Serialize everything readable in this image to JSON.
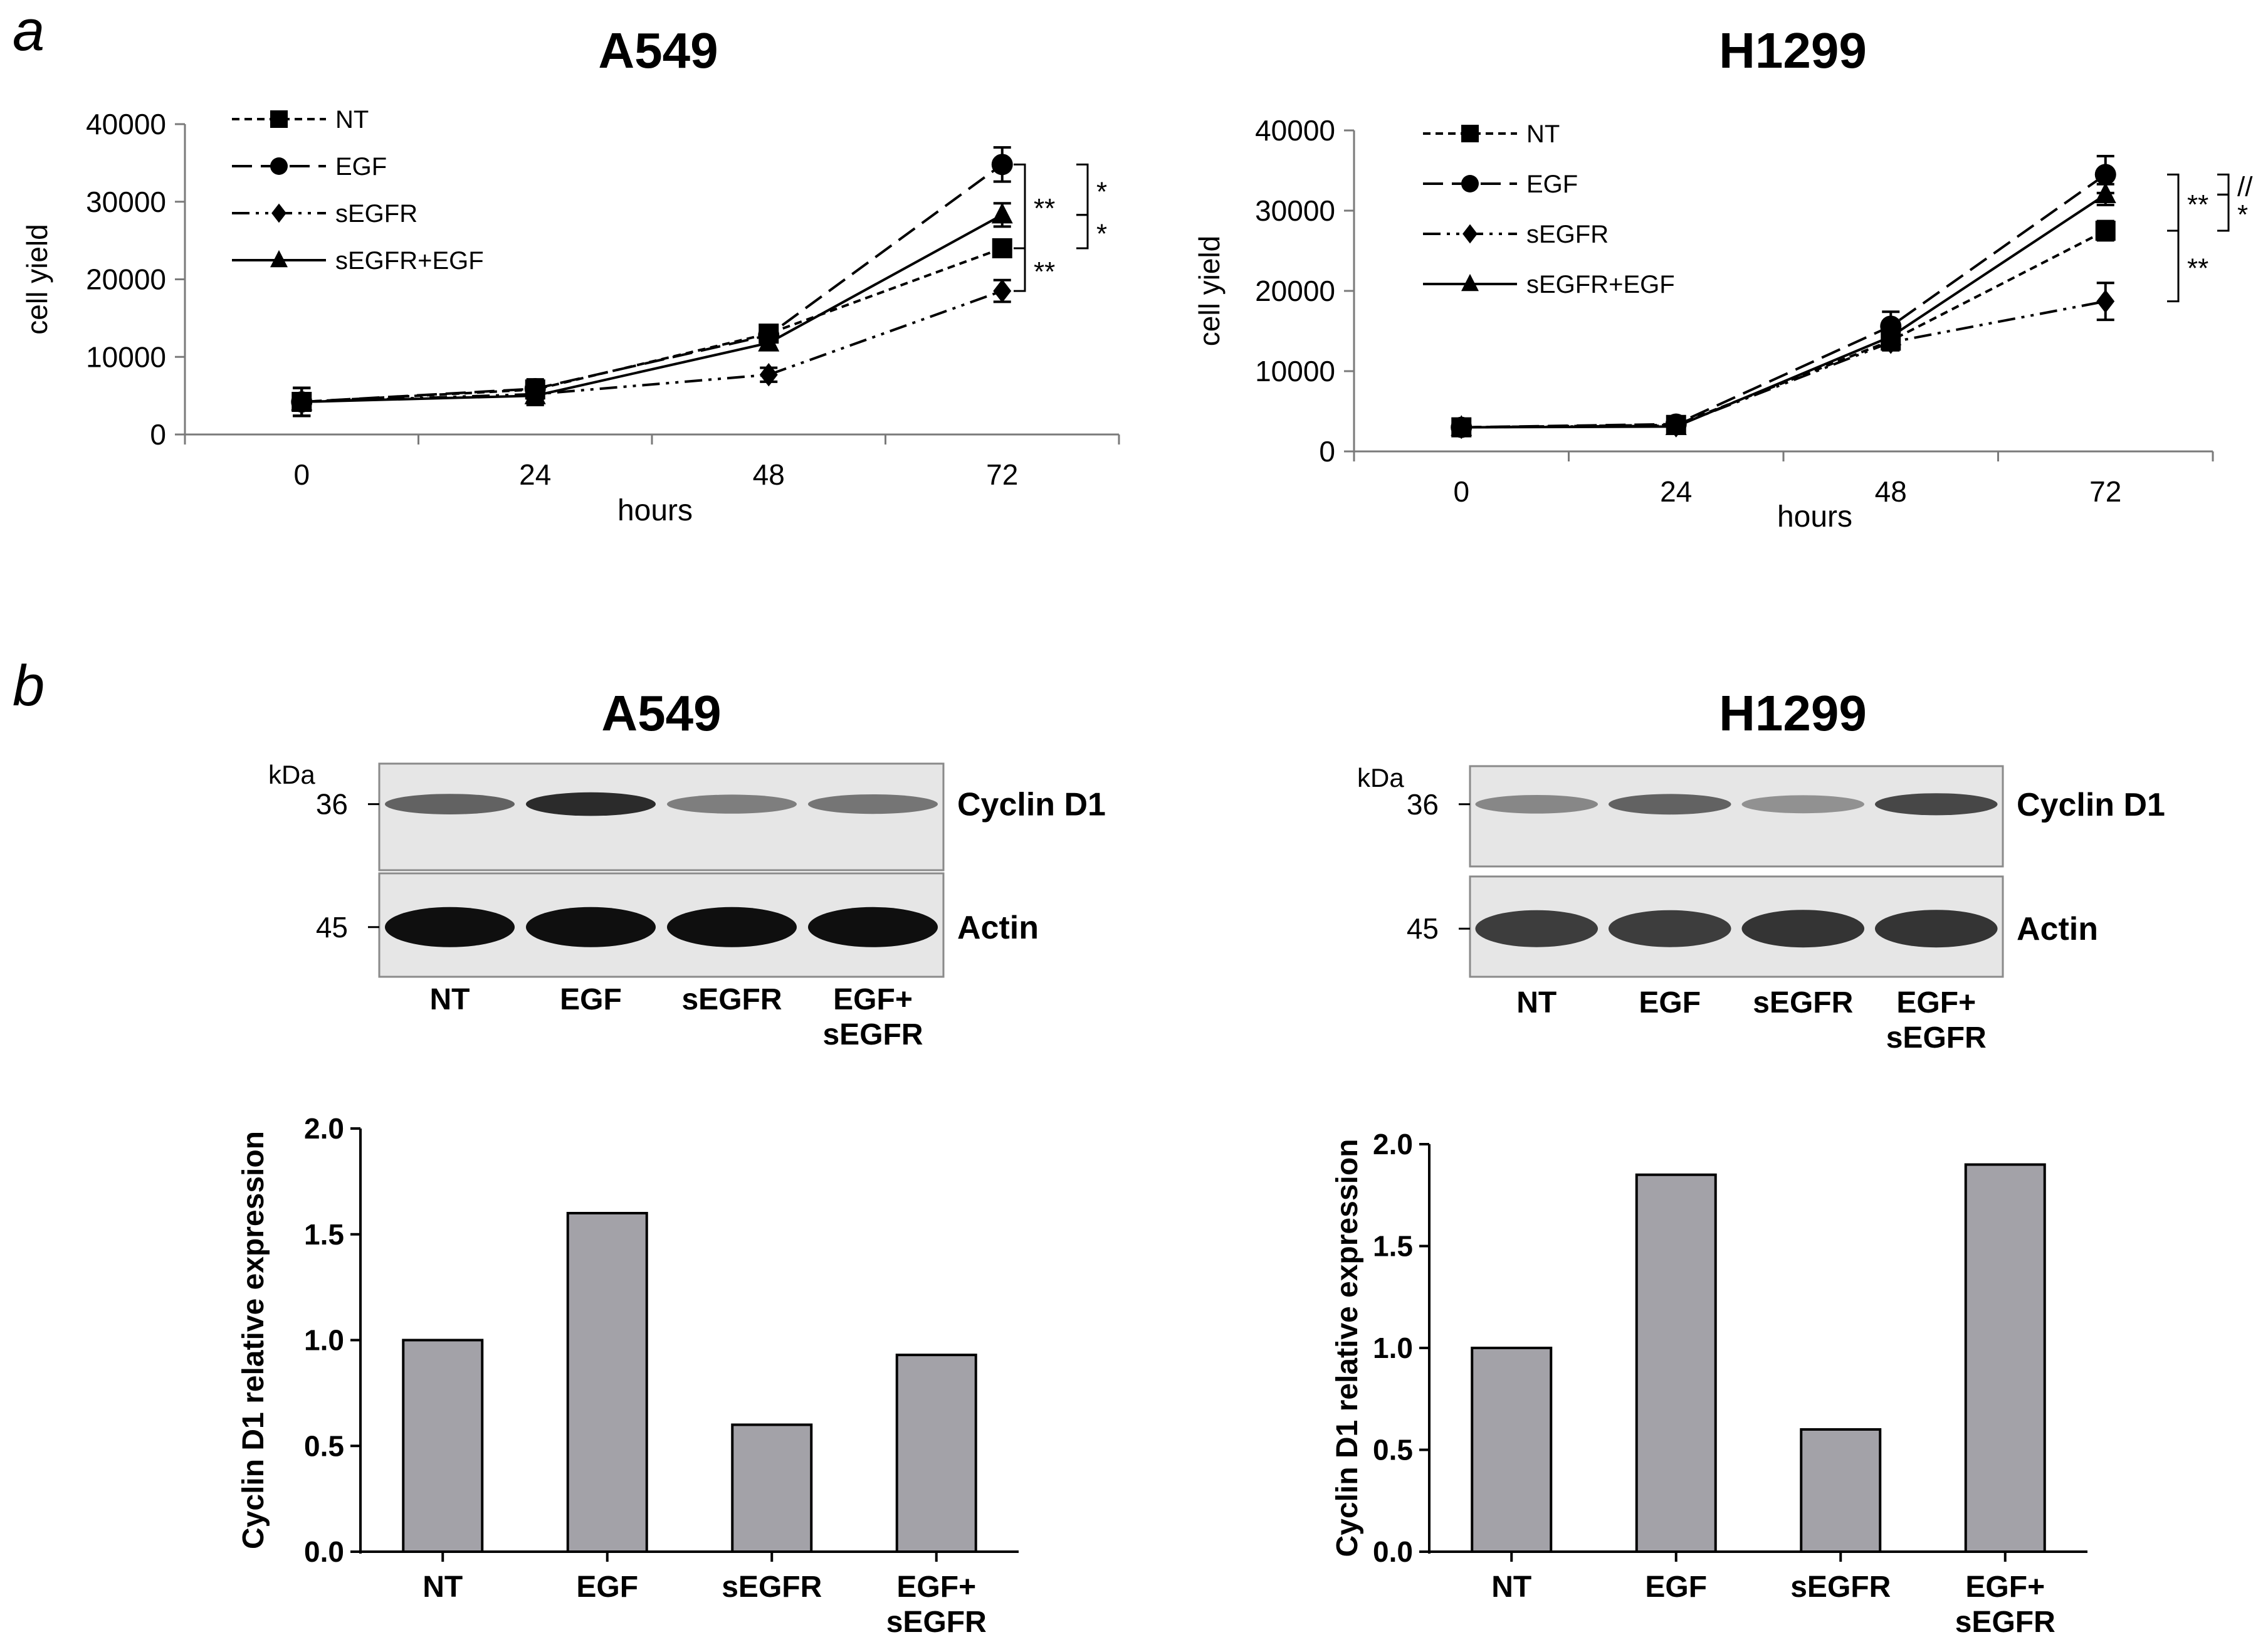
{
  "panel_labels": {
    "a": "a",
    "b": "b"
  },
  "colors": {
    "bar_fill": "#a3a2a8",
    "blot_bg": "#e6e6e6",
    "ink": "#000000"
  },
  "chart_data": [
    {
      "type": "line",
      "title": "A549",
      "xlabel": "hours",
      "ylabel": "cell yield",
      "x": [
        0,
        24,
        48,
        72
      ],
      "x_tick_labels": [
        "0",
        "24",
        "48",
        "72"
      ],
      "y_tick_labels": [
        "0",
        "10000",
        "20000",
        "30000",
        "40000"
      ],
      "ylim": [
        0,
        40000
      ],
      "legend_position": "top-left",
      "series": [
        {
          "name": "NT",
          "marker": "square",
          "dash": "short-dash",
          "values": [
            4200,
            5800,
            13000,
            24000
          ],
          "errors": [
            1800,
            1200,
            900,
            1000
          ]
        },
        {
          "name": "EGF",
          "marker": "circle",
          "dash": "long-dash",
          "values": [
            4200,
            5900,
            12800,
            34800
          ],
          "errors": [
            1800,
            1200,
            900,
            2200
          ]
        },
        {
          "name": "sEGFR",
          "marker": "diamond",
          "dash": "dash-dot-dot",
          "values": [
            4200,
            5200,
            7700,
            18500
          ],
          "errors": [
            1800,
            1200,
            900,
            1400
          ]
        },
        {
          "name": "sEGFR+EGF",
          "marker": "triangle",
          "dash": "solid",
          "values": [
            4200,
            5000,
            11800,
            28300
          ],
          "errors": [
            1800,
            1200,
            900,
            1500
          ]
        }
      ],
      "significance": [
        "**",
        "*",
        "*",
        "**"
      ]
    },
    {
      "type": "line",
      "title": "H1299",
      "xlabel": "hours",
      "ylabel": "cell yield",
      "x": [
        0,
        24,
        48,
        72
      ],
      "x_tick_labels": [
        "0",
        "24",
        "48",
        "72"
      ],
      "y_tick_labels": [
        "0",
        "10000",
        "20000",
        "30000",
        "40000"
      ],
      "ylim": [
        0,
        40000
      ],
      "legend_position": "top-left",
      "series": [
        {
          "name": "NT",
          "marker": "square",
          "dash": "short-dash",
          "values": [
            3000,
            3300,
            13800,
            27500
          ],
          "errors": [
            300,
            600,
            1000,
            1200
          ]
        },
        {
          "name": "EGF",
          "marker": "circle",
          "dash": "long-dash",
          "values": [
            3000,
            3400,
            15600,
            34500
          ],
          "errors": [
            300,
            600,
            1800,
            2300
          ]
        },
        {
          "name": "sEGFR",
          "marker": "diamond",
          "dash": "dash-dot-dot",
          "values": [
            3000,
            3200,
            13600,
            18700
          ],
          "errors": [
            300,
            600,
            1000,
            2300
          ]
        },
        {
          "name": "sEGFR+EGF",
          "marker": "triangle",
          "dash": "solid",
          "values": [
            3000,
            3100,
            14300,
            32000
          ],
          "errors": [
            300,
            600,
            1000,
            1300
          ]
        }
      ],
      "significance": [
        "**",
        "//",
        "*",
        "**"
      ]
    },
    {
      "type": "bar",
      "title": "A549",
      "xlabel": "",
      "ylabel": "Cyclin D1 relative expression",
      "categories": [
        "NT",
        "EGF",
        "sEGFR",
        "EGF+\nsEGFR"
      ],
      "values": [
        1.0,
        1.6,
        0.6,
        0.93
      ],
      "y_tick_labels": [
        "0.0",
        "0.5",
        "1.0",
        "1.5",
        "2.0"
      ],
      "ylim": [
        0,
        2.0
      ]
    },
    {
      "type": "bar",
      "title": "H1299",
      "xlabel": "",
      "ylabel": "Cyclin D1 relative expression",
      "categories": [
        "NT",
        "EGF",
        "sEGFR",
        "EGF+\nsEGFR"
      ],
      "values": [
        1.0,
        1.85,
        0.6,
        1.9
      ],
      "y_tick_labels": [
        "0.0",
        "0.5",
        "1.0",
        "1.5",
        "2.0"
      ],
      "ylim": [
        0,
        2.0
      ]
    }
  ],
  "blots": [
    {
      "cell_line": "A549",
      "unit_label": "kDa",
      "bands": [
        {
          "name": "Cyclin D1",
          "marker": "36",
          "intensities": [
            0.55,
            0.85,
            0.4,
            0.45
          ]
        },
        {
          "name": "Actin",
          "marker": "45",
          "intensities": [
            1.0,
            1.0,
            1.0,
            1.0
          ]
        }
      ],
      "lanes": [
        "NT",
        "EGF",
        "sEGFR",
        "EGF+\nsEGFR"
      ]
    },
    {
      "cell_line": "H1299",
      "unit_label": "kDa",
      "bands": [
        {
          "name": "Cyclin D1",
          "marker": "36",
          "intensities": [
            0.35,
            0.55,
            0.3,
            0.7
          ]
        },
        {
          "name": "Actin",
          "marker": "45",
          "intensities": [
            0.75,
            0.75,
            0.8,
            0.8
          ]
        }
      ],
      "lanes": [
        "NT",
        "EGF",
        "sEGFR",
        "EGF+\nsEGFR"
      ]
    }
  ]
}
